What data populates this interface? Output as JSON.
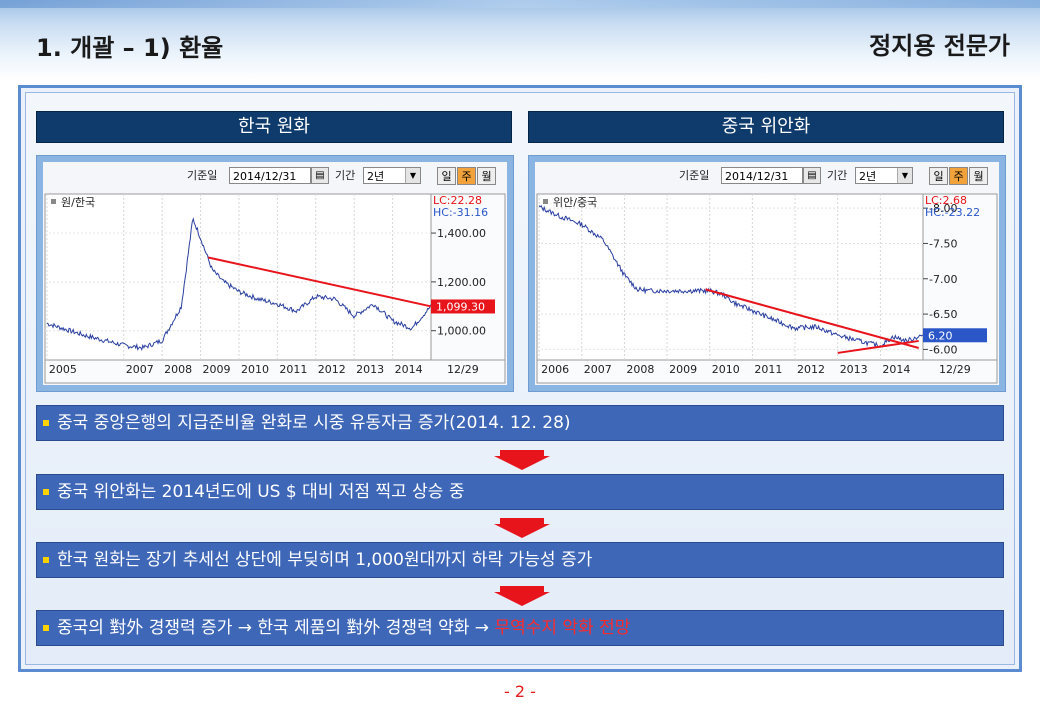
{
  "header": {
    "title": "1. 개괄 – 1) 환율",
    "brand": "정지용 전문가"
  },
  "colors": {
    "accent": "#0e3a6c",
    "bullet_bar": "#3f67b8",
    "highlight": "#ff2a2a",
    "trend": "#e8141b",
    "series": "#2a3fa0"
  },
  "charts": [
    {
      "heading": "한국 원화",
      "controls": {
        "base_date_label": "기준일",
        "base_date": "2014/12/31",
        "period_label": "기간",
        "period": "2년",
        "day": "일",
        "week": "주",
        "month": "월"
      },
      "legend": "원/한국",
      "lc": "LC:22.28",
      "hc": "HC:-31.16",
      "price_label": "1,099.30",
      "end_label": "12/29"
    },
    {
      "heading": "중국 위안화",
      "controls": {
        "base_date_label": "기준일",
        "base_date": "2014/12/31",
        "period_label": "기간",
        "period": "2년",
        "day": "일",
        "week": "주",
        "month": "월"
      },
      "legend": "위안/중국",
      "lc": "LC:2.68",
      "hc": "HC:-23.22",
      "price_label": "6.20",
      "end_label": "12/29"
    }
  ],
  "chart_data": [
    {
      "type": "line",
      "title": "한국 원화",
      "legend": "원/한국",
      "x": [
        2005,
        2006,
        2007,
        2007.5,
        2008,
        2008.5,
        2008.8,
        2009,
        2009.3,
        2009.6,
        2010,
        2010.5,
        2011,
        2011.5,
        2012,
        2012.5,
        2013,
        2013.5,
        2014,
        2014.5,
        2014.99
      ],
      "values": [
        1030,
        980,
        940,
        930,
        960,
        1100,
        1460,
        1380,
        1250,
        1200,
        1160,
        1130,
        1110,
        1080,
        1140,
        1130,
        1060,
        1110,
        1040,
        1010,
        1099.3
      ],
      "trendline": {
        "x": [
          2009.2,
          2014.99
        ],
        "values": [
          1300,
          1100
        ]
      },
      "xticks": [
        "2005",
        "2007",
        "2008",
        "2009",
        "2010",
        "2011",
        "2012",
        "2013",
        "2014"
      ],
      "yticks": [
        "1,400.00",
        "1,200.00",
        "1,000.00"
      ],
      "ylim": [
        880,
        1560
      ],
      "xlim": [
        2004.95,
        2015.0
      ],
      "last_value": 1099.3
    },
    {
      "type": "line",
      "title": "중국 위안화",
      "legend": "위안/중국",
      "x": [
        2006,
        2006.5,
        2007,
        2007.5,
        2008,
        2008.3,
        2008.6,
        2009,
        2009.5,
        2010,
        2010.3,
        2010.6,
        2011,
        2011.5,
        2012,
        2012.5,
        2013,
        2013.5,
        2014,
        2014.3,
        2014.6,
        2014.99
      ],
      "values": [
        8.02,
        7.88,
        7.77,
        7.55,
        7.05,
        6.85,
        6.83,
        6.83,
        6.83,
        6.83,
        6.78,
        6.65,
        6.55,
        6.42,
        6.3,
        6.32,
        6.2,
        6.12,
        6.05,
        6.18,
        6.12,
        6.2
      ],
      "trendline": {
        "x": [
          2009.9,
          2014.9
        ],
        "values": [
          6.85,
          6.02
        ]
      },
      "trendline2": {
        "x": [
          2013.0,
          2014.9
        ],
        "values": [
          5.95,
          6.12
        ]
      },
      "xticks": [
        "2006",
        "2007",
        "2008",
        "2009",
        "2010",
        "2011",
        "2012",
        "2013",
        "2014"
      ],
      "yticks": [
        "-8.00",
        "-7.50",
        "-7.00",
        "-6.50",
        "-6.00"
      ],
      "ylim": [
        5.85,
        8.2
      ],
      "xlim": [
        2005.95,
        2015.0
      ],
      "last_value": 6.2
    }
  ],
  "bullets": [
    {
      "text": "중국 중앙은행의 지급준비율 완화로 시중 유동자금 증가(2014. 12. 28)"
    },
    {
      "text": "중국 위안화는 2014년도에 US $ 대비 저점 찍고 상승 중"
    },
    {
      "text": "한국 원화는 장기 추세선 상단에 부딪히며 1,000원대까지 하락 가능성 증가"
    },
    {
      "text": "중국의 對外 경쟁력 증가 → 한국 제품의 對外 경쟁력 약화 → ",
      "highlight": "무역수지 악화 전망"
    }
  ],
  "page": {
    "number": "- 2 -"
  }
}
